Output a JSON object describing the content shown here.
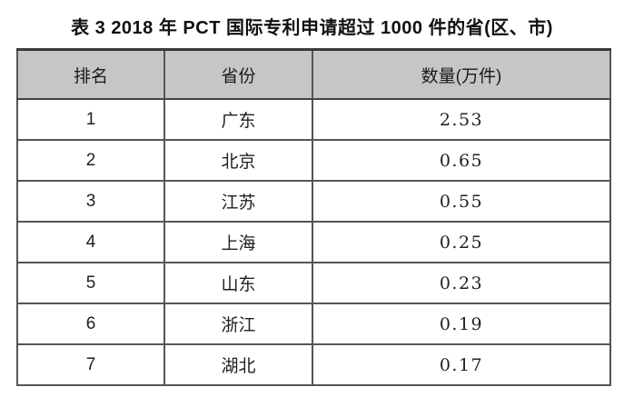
{
  "title": "表 3  2018 年 PCT 国际专利申请超过 1000 件的省(区、市)",
  "table": {
    "headers": [
      "排名",
      "省份",
      "数量(万件)"
    ],
    "rows": [
      {
        "rank": "1",
        "province": "广东",
        "value": "2.53"
      },
      {
        "rank": "2",
        "province": "北京",
        "value": "0.65"
      },
      {
        "rank": "3",
        "province": "江苏",
        "value": "0.55"
      },
      {
        "rank": "4",
        "province": "上海",
        "value": "0.25"
      },
      {
        "rank": "5",
        "province": "山东",
        "value": "0.23"
      },
      {
        "rank": "6",
        "province": "浙江",
        "value": "0.19"
      },
      {
        "rank": "7",
        "province": "湖北",
        "value": "0.17"
      }
    ]
  },
  "colors": {
    "page_bg": "#ffffff",
    "header_bg": "#c6c6c6",
    "border": "#555555",
    "outer_border": "#3a3a3a",
    "text": "#1a1a1a"
  },
  "chart_data": {
    "type": "table",
    "title": "表 3  2018 年 PCT 国际专利申请超过 1000 件的省(区、市)",
    "columns": [
      "排名",
      "省份",
      "数量(万件)"
    ],
    "categories": [
      "广东",
      "北京",
      "江苏",
      "上海",
      "山东",
      "浙江",
      "湖北"
    ],
    "values": [
      2.53,
      0.65,
      0.55,
      0.25,
      0.23,
      0.19,
      0.17
    ],
    "ranks": [
      1,
      2,
      3,
      4,
      5,
      6,
      7
    ],
    "value_unit": "万件"
  }
}
